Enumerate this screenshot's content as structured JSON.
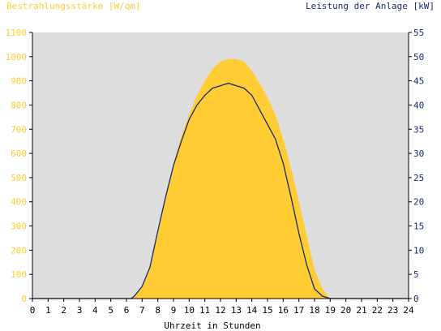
{
  "colors": {
    "plot_bg": "#dddddd",
    "irradiance_fill": "#ffcc33",
    "power_line": "#1a2a6c",
    "left_axis_text": "#ffcc33",
    "right_axis_text": "#1a2a6c"
  },
  "chart_data": {
    "type": "area",
    "title_left": "Bestrahlungsstärke [W/qm]",
    "title_right": "Leistung der Anlage [kW]",
    "xlabel": "Uhrzeit in Stunden",
    "xlim": [
      0,
      24
    ],
    "x_ticks": [
      "0",
      "1",
      "2",
      "3",
      "4",
      "5",
      "6",
      "7",
      "8",
      "9",
      "10",
      "11",
      "12",
      "13",
      "14",
      "15",
      "16",
      "17",
      "18",
      "19",
      "20",
      "21",
      "22",
      "23",
      "24"
    ],
    "y_left": {
      "lim": [
        0,
        1100
      ],
      "ticks": [
        "0",
        "100",
        "200",
        "300",
        "400",
        "500",
        "600",
        "700",
        "800",
        "900",
        "1000",
        "1100"
      ]
    },
    "y_right": {
      "lim": [
        0,
        55
      ],
      "ticks": [
        "0",
        "5",
        "10",
        "15",
        "20",
        "25",
        "30",
        "35",
        "40",
        "45",
        "50",
        "55"
      ]
    },
    "series": [
      {
        "name": "Bestrahlungsstärke",
        "axis": "left",
        "x": [
          0,
          6.2,
          6.5,
          7,
          7.5,
          8,
          8.5,
          9,
          9.5,
          10,
          10.5,
          11,
          11.5,
          12,
          12.5,
          13,
          13.5,
          14,
          14.5,
          15,
          15.5,
          16,
          16.5,
          17,
          17.5,
          18,
          18.5,
          19,
          24
        ],
        "y": [
          0,
          0,
          10,
          50,
          130,
          270,
          420,
          560,
          670,
          760,
          840,
          900,
          950,
          980,
          990,
          990,
          980,
          940,
          890,
          830,
          760,
          660,
          540,
          400,
          260,
          120,
          40,
          0,
          0
        ]
      },
      {
        "name": "Leistung der Anlage",
        "axis": "right",
        "x": [
          0,
          6.3,
          6.5,
          7,
          7.5,
          8,
          8.5,
          9,
          9.5,
          10,
          10.5,
          11,
          11.5,
          12,
          12.5,
          13,
          13.5,
          14,
          14.5,
          15,
          15.5,
          16,
          16.5,
          17,
          17.5,
          18,
          18.5,
          19,
          24
        ],
        "y": [
          0,
          0,
          0.5,
          2.5,
          6.5,
          14,
          21,
          27.5,
          32.5,
          37,
          40,
          42,
          43.5,
          44,
          44.5,
          44,
          43.5,
          42,
          39,
          36,
          33,
          28,
          21,
          13.5,
          7,
          2,
          0.5,
          0,
          0
        ]
      }
    ]
  }
}
